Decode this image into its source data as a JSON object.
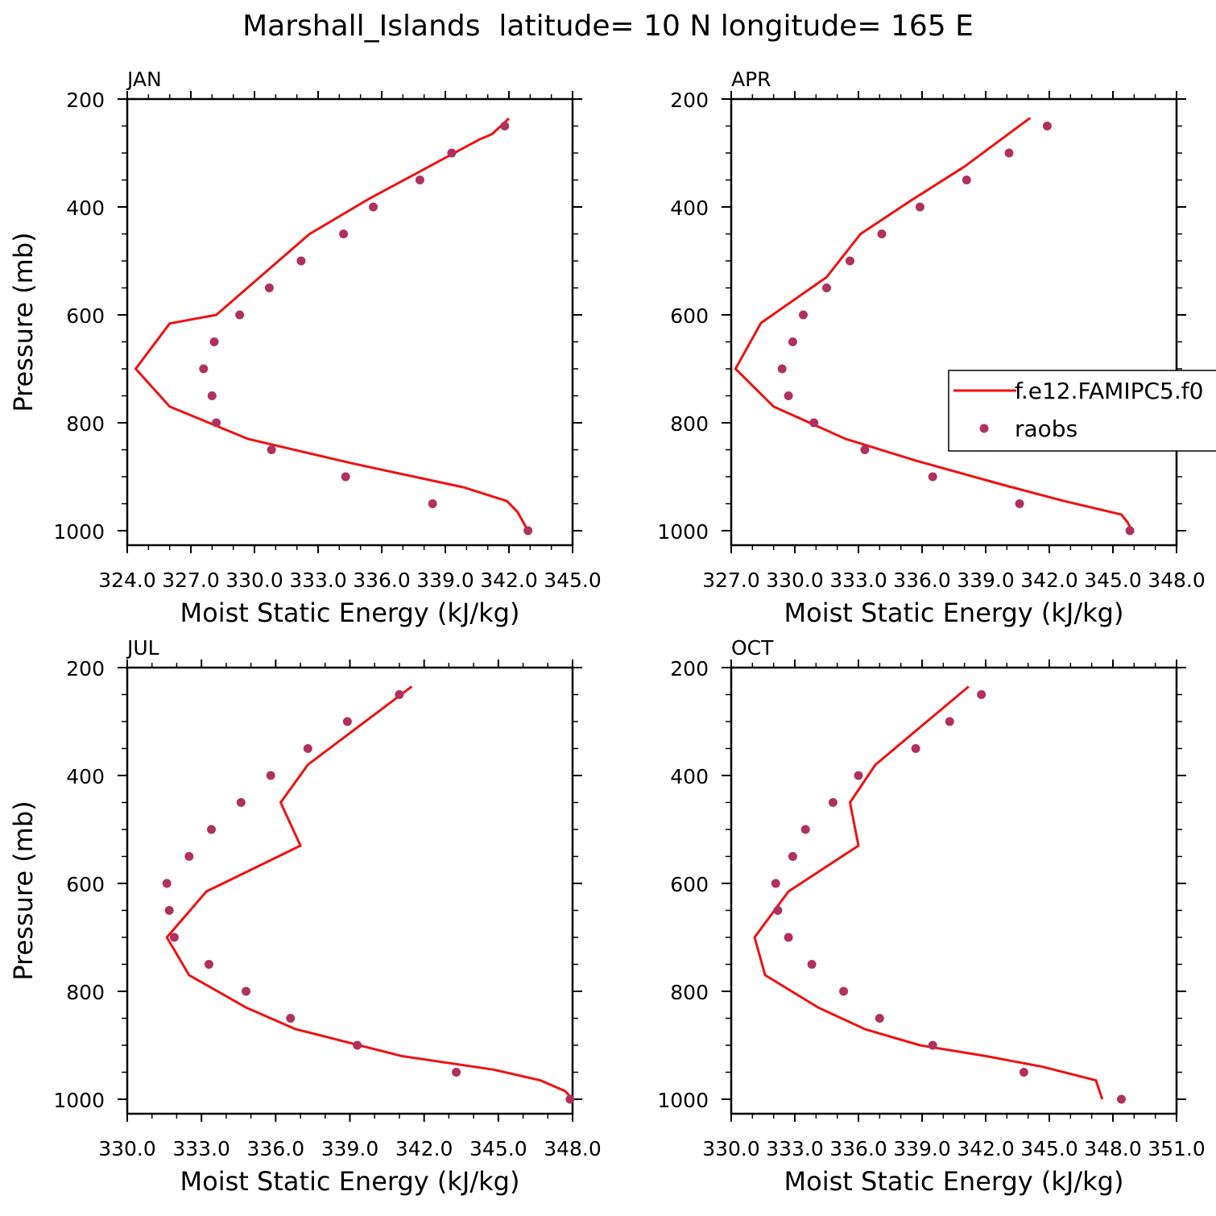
{
  "figure": {
    "title": "Marshall_Islands  latitude= 10 N longitude= 165 E"
  },
  "legend": {
    "model_label": "f.e12.FAMIPC5.f0",
    "obs_label": "raobs"
  },
  "colors": {
    "model_line": "#ee1111",
    "obs_marker": "#b03060",
    "axis": "#000000"
  },
  "chart_data": [
    {
      "type": "line",
      "panel": "JAN",
      "title": "JAN",
      "xlabel": "Moist Static Energy (kJ/kg)",
      "ylabel": "Pressure (mb)",
      "xlim": [
        324.0,
        345.0
      ],
      "ylim": [
        1000,
        200
      ],
      "x_tick_labels": [
        "324.0",
        "327.0",
        "330.0",
        "333.0",
        "336.0",
        "339.0",
        "342.0",
        "345.0"
      ],
      "y_tick_labels": [
        "200",
        "400",
        "600",
        "800",
        "1000"
      ],
      "series": [
        {
          "name": "f.e12.FAMIPC5.f0",
          "style": "line",
          "x": [
            342.0,
            341.2,
            340.6,
            338.0,
            335.4,
            332.6,
            330.4,
            328.2,
            326.0,
            324.4,
            326.0,
            329.7,
            334.6,
            339.9,
            341.9,
            342.4,
            342.9
          ],
          "y": [
            236,
            265,
            275,
            330,
            385,
            450,
            525,
            600,
            616,
            700,
            770,
            830,
            875,
            920,
            945,
            965,
            1000
          ]
        },
        {
          "name": "raobs",
          "style": "scatter",
          "x": [
            341.8,
            339.3,
            337.8,
            335.6,
            334.2,
            332.2,
            330.7,
            329.3,
            328.1,
            327.6,
            328.0,
            328.2,
            330.8,
            334.3,
            338.4,
            342.9
          ],
          "y": [
            250,
            300,
            350,
            400,
            450,
            500,
            550,
            600,
            650,
            700,
            750,
            800,
            850,
            900,
            950,
            1000
          ]
        }
      ]
    },
    {
      "type": "line",
      "panel": "APR",
      "title": "APR",
      "xlabel": "Moist Static Energy (kJ/kg)",
      "ylabel": "",
      "xlim": [
        327.0,
        348.0
      ],
      "ylim": [
        1000,
        200
      ],
      "x_tick_labels": [
        "327.0",
        "330.0",
        "333.0",
        "336.0",
        "339.0",
        "342.0",
        "345.0",
        "348.0"
      ],
      "y_tick_labels": [
        "200",
        "400",
        "600",
        "800",
        "1000"
      ],
      "series": [
        {
          "name": "f.e12.FAMIPC5.f0",
          "style": "line",
          "x": [
            341.1,
            338.0,
            335.4,
            333.1,
            331.5,
            328.4,
            327.2,
            329.0,
            332.4,
            335.7,
            339.8,
            342.7,
            345.4,
            345.7,
            345.9
          ],
          "y": [
            235,
            325,
            390,
            450,
            530,
            615,
            700,
            770,
            830,
            870,
            915,
            945,
            970,
            985,
            1000
          ]
        },
        {
          "name": "raobs",
          "style": "scatter",
          "x": [
            341.9,
            340.1,
            338.1,
            335.9,
            334.1,
            332.6,
            331.5,
            330.4,
            329.9,
            329.4,
            329.7,
            330.9,
            333.3,
            336.5,
            340.6,
            345.8
          ],
          "y": [
            250,
            300,
            350,
            400,
            450,
            500,
            550,
            600,
            650,
            700,
            750,
            800,
            850,
            900,
            950,
            1000
          ]
        }
      ]
    },
    {
      "type": "line",
      "panel": "JUL",
      "title": "JUL",
      "xlabel": "Moist Static Energy (kJ/kg)",
      "ylabel": "Pressure (mb)",
      "xlim": [
        330.0,
        348.0
      ],
      "ylim": [
        1000,
        200
      ],
      "x_tick_labels": [
        "330.0",
        "333.0",
        "336.0",
        "339.0",
        "342.0",
        "345.0",
        "348.0"
      ],
      "y_tick_labels": [
        "200",
        "400",
        "600",
        "800",
        "1000"
      ],
      "series": [
        {
          "name": "f.e12.FAMIPC5.f0",
          "style": "line",
          "x": [
            341.5,
            337.3,
            336.2,
            337.0,
            333.2,
            331.6,
            332.5,
            334.8,
            336.8,
            341.1,
            344.8,
            346.7,
            347.7,
            348.0
          ],
          "y": [
            235,
            380,
            450,
            530,
            615,
            700,
            770,
            830,
            870,
            920,
            945,
            965,
            985,
            1000
          ]
        },
        {
          "name": "raobs",
          "style": "scatter",
          "x": [
            341.0,
            338.9,
            337.3,
            335.8,
            334.6,
            333.4,
            332.5,
            331.6,
            331.7,
            331.9,
            333.3,
            334.8,
            336.6,
            339.3,
            343.3,
            347.9
          ],
          "y": [
            250,
            300,
            350,
            400,
            450,
            500,
            550,
            600,
            650,
            700,
            750,
            800,
            850,
            900,
            950,
            1000
          ]
        }
      ]
    },
    {
      "type": "line",
      "panel": "OCT",
      "title": "OCT",
      "xlabel": "Moist Static Energy (kJ/kg)",
      "ylabel": "",
      "xlim": [
        330.0,
        351.0
      ],
      "ylim": [
        1000,
        200
      ],
      "x_tick_labels": [
        "330.0",
        "333.0",
        "336.0",
        "339.0",
        "342.0",
        "345.0",
        "348.0",
        "351.0"
      ],
      "y_tick_labels": [
        "200",
        "400",
        "600",
        "800",
        "1000"
      ],
      "series": [
        {
          "name": "f.e12.FAMIPC5.f0",
          "style": "line",
          "x": [
            341.2,
            336.8,
            335.6,
            336.0,
            332.7,
            331.1,
            331.6,
            334.1,
            336.3,
            338.9,
            342.0,
            344.7,
            347.2,
            347.5
          ],
          "y": [
            235,
            380,
            450,
            530,
            615,
            700,
            770,
            830,
            870,
            900,
            920,
            940,
            965,
            1000
          ]
        },
        {
          "name": "raobs",
          "style": "scatter",
          "x": [
            341.8,
            340.3,
            338.7,
            336.0,
            334.8,
            333.5,
            332.9,
            332.1,
            332.2,
            332.7,
            333.8,
            335.3,
            337.0,
            339.5,
            343.8,
            348.4
          ],
          "y": [
            250,
            300,
            350,
            400,
            450,
            500,
            550,
            600,
            650,
            700,
            750,
            800,
            850,
            900,
            950,
            1000
          ]
        }
      ]
    }
  ]
}
